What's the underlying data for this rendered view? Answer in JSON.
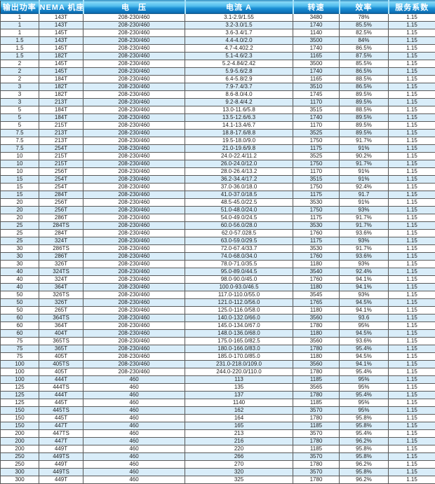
{
  "table": {
    "columns": [
      {
        "key": "power",
        "label": "输出功率"
      },
      {
        "key": "frame",
        "label": "NEMA 机座号"
      },
      {
        "key": "voltage",
        "label": "电　压"
      },
      {
        "key": "current",
        "label": "电流 A"
      },
      {
        "key": "speed",
        "label": "转速"
      },
      {
        "key": "efficiency",
        "label": "效率"
      },
      {
        "key": "service-factor",
        "label": "服务系数"
      }
    ],
    "rows": [
      [
        "1",
        "143T",
        "208-230/460",
        "3.1-2.9/1.55",
        "3480",
        "78%",
        "1.15"
      ],
      [
        "1",
        "143T",
        "208-230/460",
        "3.2-3.0/1.5",
        "1740",
        "85.5%",
        "1.15"
      ],
      [
        "1",
        "145T",
        "208-230/460",
        "3.6-3.4/1.7",
        "1140",
        "82.5%",
        "1.15"
      ],
      [
        "1.5",
        "143T",
        "208-230/460",
        "4.4-4.0/2.0",
        "3500",
        "84%",
        "1.15"
      ],
      [
        "1.5",
        "145T",
        "208-230/460",
        "4.7-4.402.2",
        "1740",
        "86.5%",
        "1.15"
      ],
      [
        "1.5",
        "182T",
        "208-230/460",
        "5.1-4.6/2.3",
        "1165",
        "87.5%",
        "1.15"
      ],
      [
        "2",
        "145T",
        "208-230/460",
        "5.2-4.84/2.42",
        "3500",
        "85.5%",
        "1.15"
      ],
      [
        "2",
        "145T",
        "208-230/460",
        "5.9-5.6/2.8",
        "1740",
        "86.5%",
        "1.15"
      ],
      [
        "2",
        "184T",
        "208-230/460",
        "6.4-5.8/2.9",
        "1165",
        "88.5%",
        "1.15"
      ],
      [
        "3",
        "182T",
        "208-230/460",
        "7.9-7.4/3.7",
        "3510",
        "86.5%",
        "1.15"
      ],
      [
        "3",
        "182T",
        "208-230/460",
        "8.6-8.0/4.0",
        "1745",
        "89.5%",
        "1.15"
      ],
      [
        "3",
        "213T",
        "208-230/460",
        "9.2-8.4/4.2",
        "1170",
        "89.5%",
        "1.15"
      ],
      [
        "5",
        "184T",
        "208-230/460",
        "13.0-11.6/5.8",
        "3515",
        "88.5%",
        "1.15"
      ],
      [
        "5",
        "184T",
        "208-230/460",
        "13.5-12.6/6.3",
        "1740",
        "89.5%",
        "1.15"
      ],
      [
        "5",
        "215T",
        "208-230/460",
        "14.1-13.4/6.7",
        "1170",
        "89.5%",
        "1.15"
      ],
      [
        "7.5",
        "213T",
        "208-230/460",
        "18.8-17.6/8.8",
        "3525",
        "89.5%",
        "1.15"
      ],
      [
        "7.5",
        "213T",
        "208-230/460",
        "19.5-18.0/9.0",
        "1750",
        "91.7%",
        "1.15"
      ],
      [
        "7.5",
        "254T",
        "208-230/460",
        "21.0-19.6/9.8",
        "1175",
        "91%",
        "1.15"
      ],
      [
        "10",
        "215T",
        "208-230/460",
        "24.0-22.4/11.2",
        "3525",
        "90.2%",
        "1.15"
      ],
      [
        "10",
        "215T",
        "208-230/460",
        "26.0-24.0/12.0",
        "1750",
        "91.7%",
        "1.15"
      ],
      [
        "10",
        "256T",
        "208-230/460",
        "28.0-26.4/13.2",
        "1170",
        "91%",
        "1.15"
      ],
      [
        "15",
        "254T",
        "208-230/460",
        "36.2-34.4/17.2",
        "3515",
        "91%",
        "1.15"
      ],
      [
        "15",
        "254T",
        "208-230/460",
        "37.0-36.0/18.0",
        "1750",
        "92.4%",
        "1.15"
      ],
      [
        "15",
        "284T",
        "208-230/460",
        "41.0-37.0/18.5",
        "1175",
        "91.7",
        "1.15"
      ],
      [
        "20",
        "256T",
        "208-230/460",
        "48.5-45.0/22.5",
        "3530",
        "91%",
        "1.15"
      ],
      [
        "20",
        "256T",
        "208-230/460",
        "51.0-48.0/24.0",
        "1750",
        "93%",
        "1.15"
      ],
      [
        "20",
        "286T",
        "208-230/460",
        "54.0-49.0/24.5",
        "1175",
        "91.7%",
        "1.15"
      ],
      [
        "25",
        "284TS",
        "208-230/460",
        "60.0-56.0/28.0",
        "3530",
        "91.7%",
        "1.15"
      ],
      [
        "25",
        "284T",
        "208-230/460",
        "62.0-57.028.5",
        "1760",
        "93.6%",
        "1.15"
      ],
      [
        "25",
        "324T",
        "208-230/460",
        "63.0-59.0/29.5",
        "1175",
        "93%",
        "1.15"
      ],
      [
        "30",
        "286TS",
        "208-230/460",
        "72.0-67.4/33.7",
        "3530",
        "91.7%",
        "1.15"
      ],
      [
        "30",
        "286T",
        "208-230/460",
        "74.0-68.0/34.0",
        "1760",
        "93.6%",
        "1.15"
      ],
      [
        "30",
        "326T",
        "208-230/460",
        "78.0-71.0/35.5",
        "1180",
        "93%",
        "1.15"
      ],
      [
        "40",
        "324TS",
        "208-230/460",
        "95.0-89.0/44.5",
        "3540",
        "92.4%",
        "1.15"
      ],
      [
        "40",
        "324T",
        "208-230/460",
        "98.0-90.0/45.0",
        "1760",
        "94.1%",
        "1.15"
      ],
      [
        "40",
        "364T",
        "208-230/460",
        "100.0-93.0/46.5",
        "1180",
        "94.1%",
        "1.15"
      ],
      [
        "50",
        "326TS",
        "208-230/460",
        "117.0-110.0/55.0",
        "3545",
        "93%",
        "1.15"
      ],
      [
        "50",
        "326T",
        "208-230/460",
        "121.0-112.0/56.0",
        "1765",
        "94.5%",
        "1.15"
      ],
      [
        "50",
        "265T",
        "208-230/460",
        "125.0-116.0/58.0",
        "1180",
        "94.1%",
        "1.15"
      ],
      [
        "60",
        "364TS",
        "208-230/460",
        "140.0-132.0/66.0",
        "3560",
        "93.6",
        "1.15"
      ],
      [
        "60",
        "364T",
        "208-230/460",
        "145.0-134.0/67.0",
        "1780",
        "95%",
        "1.15"
      ],
      [
        "60",
        "404T",
        "208-230/460",
        "148.0-136.0/68.0",
        "1180",
        "94.5%",
        "1.15"
      ],
      [
        "75",
        "365TS",
        "208-230/460",
        "175.0-165.0/82.5",
        "3560",
        "93.6%",
        "1.15"
      ],
      [
        "75",
        "365T",
        "208-230/460",
        "180.0-166.0/83.0",
        "1780",
        "95.4%",
        "1.15"
      ],
      [
        "75",
        "405T",
        "208-230/460",
        "185.0-170.0/85.0",
        "1180",
        "94.5%",
        "1.15"
      ],
      [
        "100",
        "405TS",
        "208-230/460",
        "231.0-218.0/109.0",
        "3560",
        "94.1%",
        "1.15"
      ],
      [
        "100",
        "405T",
        "208-230/460",
        "244.0-220.0/110.0",
        "1780",
        "95.4%",
        "1.15"
      ],
      [
        "100",
        "444T",
        "460",
        "113",
        "1185",
        "95%",
        "1.15"
      ],
      [
        "125",
        "444TS",
        "460",
        "135",
        "3565",
        "95%",
        "1.15"
      ],
      [
        "125",
        "444T",
        "460",
        "137",
        "1780",
        "95.4%",
        "1.15"
      ],
      [
        "125",
        "445T",
        "460",
        "1140",
        "1185",
        "95%",
        "1.15"
      ],
      [
        "150",
        "445TS",
        "460",
        "162",
        "3570",
        "95%",
        "1.15"
      ],
      [
        "150",
        "445T",
        "460",
        "164",
        "1780",
        "95.8%",
        "1.15"
      ],
      [
        "150",
        "447T",
        "460",
        "165",
        "1185",
        "95.8%",
        "1.15"
      ],
      [
        "200",
        "447TS",
        "460",
        "213",
        "3570",
        "95.4%",
        "1.15"
      ],
      [
        "200",
        "447T",
        "460",
        "216",
        "1780",
        "96.2%",
        "1.15"
      ],
      [
        "200",
        "449T",
        "460",
        "220",
        "1185",
        "95.8%",
        "1.15"
      ],
      [
        "250",
        "449TS",
        "460",
        "266",
        "3570",
        "95.8%",
        "1.15"
      ],
      [
        "250",
        "449T",
        "460",
        "270",
        "1780",
        "96.2%",
        "1.15"
      ],
      [
        "300",
        "449TS",
        "460",
        "320",
        "3570",
        "95.8%",
        "1.15"
      ],
      [
        "300",
        "449T",
        "460",
        "325",
        "1780",
        "96.2%",
        "1.15"
      ]
    ]
  },
  "colors": {
    "header_gradient_top": "#8edcf9",
    "header_gradient_mid": "#1a8ed4",
    "header_gradient_bottom": "#0a578e",
    "header_text": "#ffffff",
    "row_alt_blue": "#d9edf9",
    "row_white": "#ffffff",
    "cell_border": "#585858",
    "cell_text": "#1c1c1c"
  }
}
